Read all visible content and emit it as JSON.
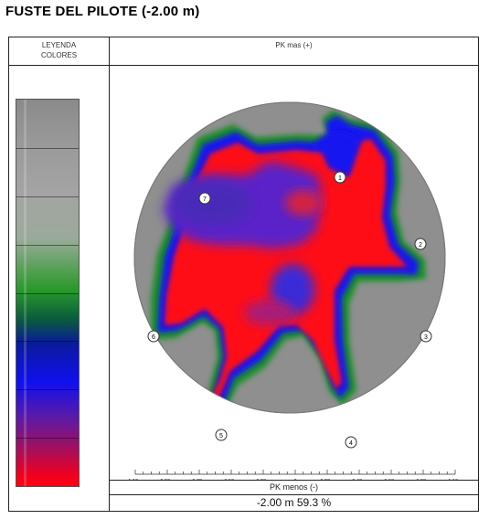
{
  "title": "FUSTE  DEL PILOTE   (-2.00 m)",
  "legend": {
    "header_line1": "LEYENDA",
    "header_line2": "COLORES"
  },
  "pk_top": "PK mas (+)",
  "pk_bottom": "PK menos (-)",
  "result": "-2.00 m  59.3 %",
  "axis_labels": [
    "1.10m",
    "0.90m",
    "0.70m",
    "0.50m",
    "0.30m",
    "0",
    "0.20m",
    "0.40m",
    "0.60m",
    "0.80m",
    "1.10m"
  ],
  "markers": [
    "1",
    "2",
    "3",
    "4",
    "5",
    "6",
    "7"
  ],
  "colors": {
    "gray": "#8f8f8f",
    "green": "#1f8f2a",
    "blue": "#1414f0",
    "purple": "#5a22c8",
    "red": "#ff0a14"
  }
}
